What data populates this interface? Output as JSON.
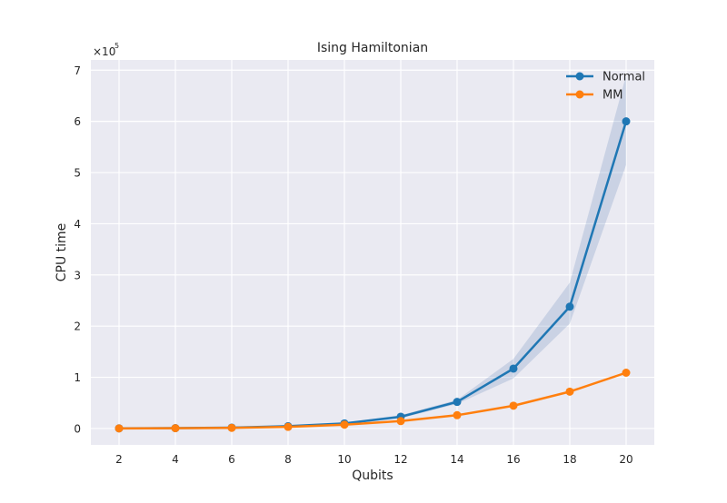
{
  "chart_data": {
    "type": "line",
    "title": "Ising Hamiltonian",
    "xlabel": "Qubits",
    "ylabel": "CPU time",
    "y_scale_label": "×10",
    "y_scale_exponent": "5",
    "xlim": [
      1.0,
      21.0
    ],
    "ylim": [
      -32000,
      720000
    ],
    "x_ticks": [
      2,
      4,
      6,
      8,
      10,
      12,
      14,
      16,
      18,
      20
    ],
    "y_ticks": [
      0,
      100000,
      200000,
      300000,
      400000,
      500000,
      600000,
      700000
    ],
    "y_tick_labels": [
      "0",
      "1",
      "2",
      "3",
      "4",
      "5",
      "6",
      "7"
    ],
    "x_tick_labels": [
      "2",
      "4",
      "6",
      "8",
      "10",
      "12",
      "14",
      "16",
      "18",
      "20"
    ],
    "grid": true,
    "legend": "top-right",
    "background": "#eaeaf2",
    "series": [
      {
        "name": "Normal",
        "color": "#1f77b4",
        "band_color": "#4c72b0",
        "x": [
          2,
          4,
          6,
          8,
          10,
          12,
          14,
          16,
          18,
          20
        ],
        "y": [
          300,
          800,
          1800,
          4500,
          10000,
          23000,
          52000,
          117000,
          238000,
          600000
        ],
        "y_lower": [
          200,
          600,
          1500,
          3800,
          8500,
          20000,
          48000,
          98000,
          205000,
          515000
        ],
        "y_upper": [
          400,
          1000,
          2100,
          5200,
          11500,
          26000,
          56000,
          136000,
          285000,
          690000
        ]
      },
      {
        "name": "MM",
        "color": "#ff7f0e",
        "x": [
          2,
          4,
          6,
          8,
          10,
          12,
          14,
          16,
          18,
          20
        ],
        "y": [
          200,
          600,
          1300,
          3200,
          7500,
          14500,
          26000,
          44500,
          72000,
          109000
        ]
      }
    ]
  }
}
